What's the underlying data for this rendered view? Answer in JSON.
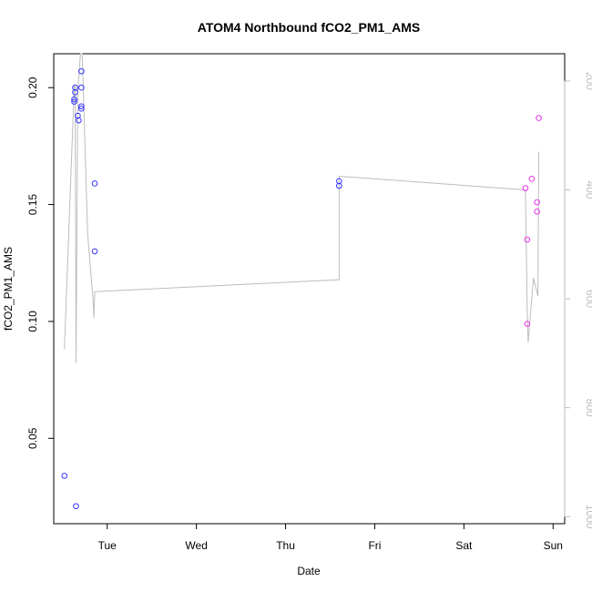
{
  "chart_data": {
    "type": "scatter",
    "title": "ATOM4 Northbound fCO2_PM1_AMS",
    "xlabel": "Date",
    "ylabel": "fCO2_PM1_AMS",
    "x_axis": {
      "type": "date",
      "range_days": [
        -0.6,
        5.13
      ],
      "ticks": [
        {
          "day": 0,
          "label": "Tue"
        },
        {
          "day": 1,
          "label": "Wed"
        },
        {
          "day": 2,
          "label": "Thu"
        },
        {
          "day": 3,
          "label": "Fri"
        },
        {
          "day": 4,
          "label": "Sat"
        },
        {
          "day": 5,
          "label": "Sun"
        }
      ]
    },
    "y_axis": {
      "ylim": [
        0.0135,
        0.2145
      ],
      "ticks": [
        0.05,
        0.1,
        0.15,
        0.2
      ],
      "tick_labels": [
        "0.05",
        "0.10",
        "0.15",
        "0.20"
      ]
    },
    "y2_axis": {
      "color": "#bdbdbd",
      "reversed": true,
      "ylim": [
        1013,
        150
      ],
      "ticks": [
        200,
        400,
        600,
        800,
        1000
      ],
      "tick_labels": [
        "200",
        "400",
        "600",
        "800",
        "1000"
      ]
    },
    "series": [
      {
        "kind": "points",
        "color": "#3333ff",
        "points": [
          {
            "x": -0.48,
            "y": 0.034
          },
          {
            "x": -0.35,
            "y": 0.021
          },
          {
            "x": -0.37,
            "y": 0.194
          },
          {
            "x": -0.37,
            "y": 0.195
          },
          {
            "x": -0.36,
            "y": 0.198
          },
          {
            "x": -0.36,
            "y": 0.2
          },
          {
            "x": -0.33,
            "y": 0.188
          },
          {
            "x": -0.32,
            "y": 0.186
          },
          {
            "x": -0.29,
            "y": 0.191
          },
          {
            "x": -0.29,
            "y": 0.192
          },
          {
            "x": -0.29,
            "y": 0.2
          },
          {
            "x": -0.29,
            "y": 0.207
          },
          {
            "x": -0.14,
            "y": 0.159
          },
          {
            "x": -0.14,
            "y": 0.13
          },
          {
            "x": 2.6,
            "y": 0.158
          },
          {
            "x": 2.6,
            "y": 0.16
          }
        ]
      },
      {
        "kind": "points",
        "color": "#e633e6",
        "points": [
          {
            "x": 4.69,
            "y": 0.157
          },
          {
            "x": 4.71,
            "y": 0.135
          },
          {
            "x": 4.71,
            "y": 0.099
          },
          {
            "x": 4.76,
            "y": 0.161
          },
          {
            "x": 4.82,
            "y": 0.147
          },
          {
            "x": 4.82,
            "y": 0.151
          },
          {
            "x": 4.84,
            "y": 0.187
          }
        ]
      },
      {
        "kind": "line",
        "color": "#bdbdbd",
        "axis": "y2",
        "points": [
          {
            "x": -0.48,
            "y": 692
          },
          {
            "x": -0.37,
            "y": 210
          },
          {
            "x": -0.36,
            "y": 210
          },
          {
            "x": -0.35,
            "y": 718
          },
          {
            "x": -0.33,
            "y": 220
          },
          {
            "x": -0.3,
            "y": 150
          },
          {
            "x": -0.28,
            "y": 150
          },
          {
            "x": -0.22,
            "y": 480
          },
          {
            "x": -0.16,
            "y": 600
          },
          {
            "x": -0.15,
            "y": 635
          },
          {
            "x": -0.14,
            "y": 587
          },
          {
            "x": 2.6,
            "y": 565
          },
          {
            "x": 2.6,
            "y": 375
          },
          {
            "x": 4.69,
            "y": 400
          },
          {
            "x": 4.71,
            "y": 620
          },
          {
            "x": 4.72,
            "y": 680
          },
          {
            "x": 4.78,
            "y": 562
          },
          {
            "x": 4.83,
            "y": 595
          },
          {
            "x": 4.84,
            "y": 330
          }
        ]
      }
    ]
  }
}
